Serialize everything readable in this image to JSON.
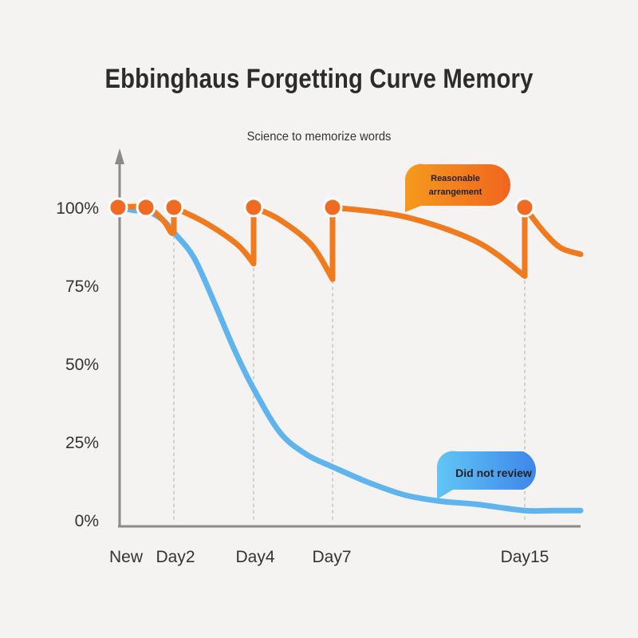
{
  "title": "Ebbinghaus Forgetting Curve Memory",
  "subtitle": "Science to memorize words",
  "colors": {
    "review_series": "#f07a1e",
    "no_review_series": "#5fb4ee",
    "marker": "#ef6a22",
    "axis": "#8a8a8a",
    "guide": "#c8c8c8"
  },
  "chart_data": {
    "type": "line",
    "title": "Ebbinghaus Forgetting Curve Memory",
    "subtitle": "Science to memorize words",
    "y_tick_labels": [
      "100%",
      "75%",
      "50%",
      "25%",
      "0%"
    ],
    "y_ticks": [
      100,
      75,
      50,
      25,
      0
    ],
    "x_tick_labels": [
      "New",
      "Day2",
      "Day4",
      "Day7",
      "Day15"
    ],
    "x_ticks": [
      0,
      2,
      4,
      7,
      15
    ],
    "ylim": [
      0,
      100
    ],
    "grid": false,
    "review_days": [
      0,
      1,
      2,
      4,
      7,
      15
    ],
    "series": [
      {
        "name": "Reasonable arrangement",
        "color": "#f07a1e",
        "points": [
          [
            0,
            100
          ],
          [
            1,
            100
          ],
          [
            1.6,
            96
          ],
          [
            1.9,
            92
          ],
          [
            2,
            92
          ],
          [
            2,
            100
          ],
          [
            2.8,
            95
          ],
          [
            3.6,
            88
          ],
          [
            4,
            82
          ],
          [
            4,
            100
          ],
          [
            5,
            96
          ],
          [
            6.2,
            88
          ],
          [
            7,
            77
          ],
          [
            7,
            100
          ],
          [
            10,
            97
          ],
          [
            13,
            89
          ],
          [
            15,
            78
          ],
          [
            15,
            100
          ],
          [
            15.7,
            92
          ],
          [
            16.3,
            87
          ],
          [
            17,
            85
          ]
        ]
      },
      {
        "name": "Did not review",
        "color": "#5fb4ee",
        "points": [
          [
            0,
            100
          ],
          [
            0.6,
            99
          ],
          [
            1,
            99
          ],
          [
            1.6,
            96
          ],
          [
            2,
            92
          ],
          [
            2.5,
            84
          ],
          [
            3,
            70
          ],
          [
            3.5,
            55
          ],
          [
            4,
            42
          ],
          [
            5,
            28
          ],
          [
            6,
            21
          ],
          [
            7,
            17
          ],
          [
            8.5,
            12
          ],
          [
            10,
            8
          ],
          [
            11.5,
            6
          ],
          [
            13,
            5
          ],
          [
            15,
            3
          ],
          [
            16,
            3
          ],
          [
            17,
            3
          ]
        ]
      }
    ],
    "annotations": [
      {
        "text": "Reasonable arrangement",
        "lines": [
          "Reasonable",
          "arrangement"
        ],
        "series": "Reasonable arrangement"
      },
      {
        "text": "Did not review",
        "lines": [
          "Did not review"
        ],
        "series": "Did not review"
      }
    ]
  }
}
